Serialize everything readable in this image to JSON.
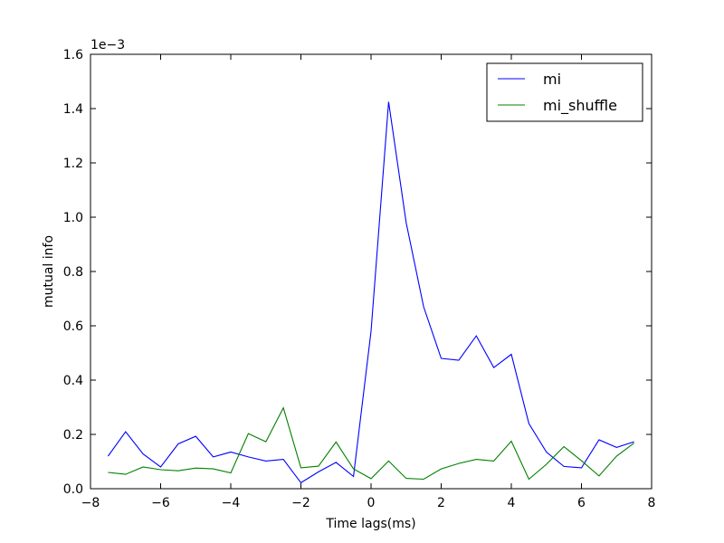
{
  "chart_data": {
    "type": "line",
    "xlabel": "Time lags(ms)",
    "ylabel": "mutual info",
    "scale_label": "1e−3",
    "xlim": [
      -8,
      8
    ],
    "ylim": [
      0,
      1.6
    ],
    "x_ticks": [
      -8,
      -6,
      -4,
      -2,
      0,
      2,
      4,
      6,
      8
    ],
    "x_tick_labels": [
      "−8",
      "−6",
      "−4",
      "−2",
      "0",
      "2",
      "4",
      "6",
      "8"
    ],
    "y_ticks": [
      0,
      0.2,
      0.4,
      0.6,
      0.8,
      1.0,
      1.2,
      1.4,
      1.6
    ],
    "y_tick_labels": [
      "0.0",
      "0.2",
      "0.4",
      "0.6",
      "0.8",
      "1.0",
      "1.2",
      "1.4",
      "1.6"
    ],
    "grid": false,
    "legend_position": "top-right",
    "x": [
      -7.5,
      -7.0,
      -6.5,
      -6.0,
      -5.5,
      -5.0,
      -4.5,
      -4.0,
      -3.5,
      -3.0,
      -2.5,
      -2.0,
      -1.5,
      -1.0,
      -0.5,
      0.0,
      0.5,
      1.0,
      1.5,
      2.0,
      2.5,
      3.0,
      3.5,
      4.0,
      4.5,
      5.0,
      5.5,
      6.0,
      6.5,
      7.0,
      7.5
    ],
    "series": [
      {
        "name": "mi",
        "color": "#0000ff",
        "values": [
          0.12,
          0.21,
          0.128,
          0.08,
          0.165,
          0.193,
          0.117,
          0.135,
          0.117,
          0.102,
          0.108,
          0.022,
          0.062,
          0.097,
          0.045,
          0.58,
          1.425,
          0.98,
          0.67,
          0.48,
          0.473,
          0.563,
          0.446,
          0.495,
          0.24,
          0.135,
          0.082,
          0.077,
          0.18,
          0.152,
          0.173
        ]
      },
      {
        "name": "mi_shuffle",
        "color": "#008000",
        "values": [
          0.06,
          0.053,
          0.08,
          0.07,
          0.066,
          0.076,
          0.073,
          0.058,
          0.203,
          0.173,
          0.298,
          0.077,
          0.083,
          0.172,
          0.073,
          0.037,
          0.102,
          0.038,
          0.035,
          0.073,
          0.093,
          0.108,
          0.102,
          0.175,
          0.035,
          0.09,
          0.155,
          0.103,
          0.047,
          0.12,
          0.168
        ]
      }
    ]
  }
}
